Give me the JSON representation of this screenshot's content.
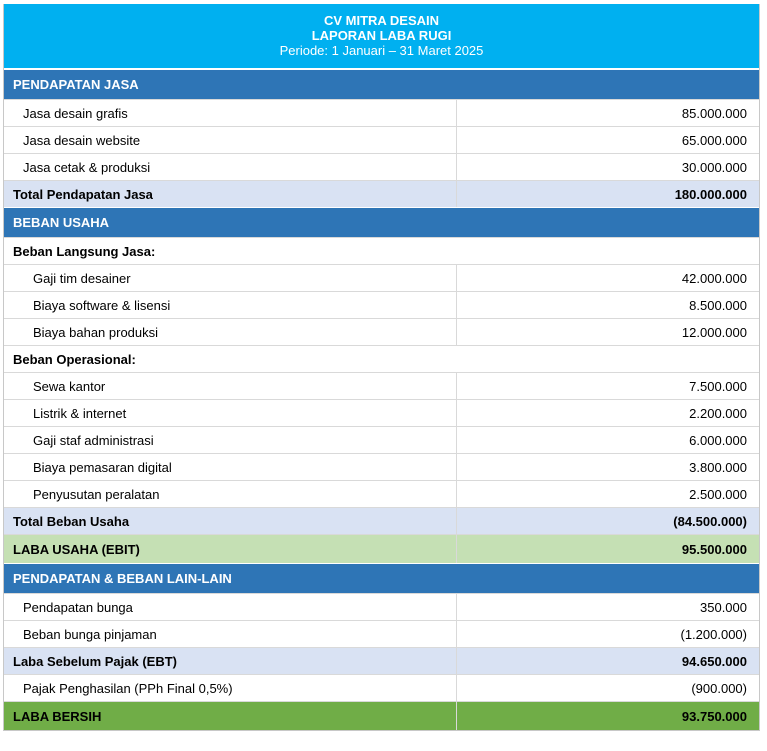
{
  "header": {
    "company": "CV MITRA DESAIN",
    "report": "LAPORAN LABA RUGI",
    "period": "Periode: 1 Januari – 31 Maret 2025"
  },
  "revenue": {
    "section_title": "PENDAPATAN JASA",
    "items": [
      {
        "label": "Jasa desain grafis",
        "amount": "85.000.000"
      },
      {
        "label": "Jasa desain website",
        "amount": "65.000.000"
      },
      {
        "label": "Jasa cetak & produksi",
        "amount": "30.000.000"
      }
    ],
    "total_label": "Total Pendapatan Jasa",
    "total_amount": "180.000.000"
  },
  "expenses": {
    "section_title": "BEBAN USAHA",
    "direct": {
      "group_title": "Beban Langsung Jasa:",
      "items": [
        {
          "label": "Gaji tim desainer",
          "amount": "42.000.000"
        },
        {
          "label": "Biaya software & lisensi",
          "amount": "8.500.000"
        },
        {
          "label": "Biaya bahan produksi",
          "amount": "12.000.000"
        }
      ]
    },
    "operational": {
      "group_title": "Beban Operasional:",
      "items": [
        {
          "label": "Sewa kantor",
          "amount": "7.500.000"
        },
        {
          "label": "Listrik & internet",
          "amount": "2.200.000"
        },
        {
          "label": "Gaji staf administrasi",
          "amount": "6.000.000"
        },
        {
          "label": "Biaya pemasaran digital",
          "amount": "3.800.000"
        },
        {
          "label": "Penyusutan peralatan",
          "amount": "2.500.000"
        }
      ]
    },
    "total_label": "Total Beban Usaha",
    "total_amount": "(84.500.000)"
  },
  "ebit": {
    "label": "LABA USAHA (EBIT)",
    "amount": "95.500.000"
  },
  "other": {
    "section_title": "PENDAPATAN & BEBAN LAIN-LAIN",
    "items": [
      {
        "label": "Pendapatan bunga",
        "amount": "350.000"
      },
      {
        "label": "Beban bunga pinjaman",
        "amount": "(1.200.000)"
      }
    ]
  },
  "ebt": {
    "label": "Laba Sebelum Pajak (EBT)",
    "amount": "94.650.000"
  },
  "tax": {
    "label": "Pajak Penghasilan (PPh Final 0,5%)",
    "amount": "(900.000)"
  },
  "net": {
    "label": "LABA BERSIH",
    "amount": "93.750.000"
  }
}
